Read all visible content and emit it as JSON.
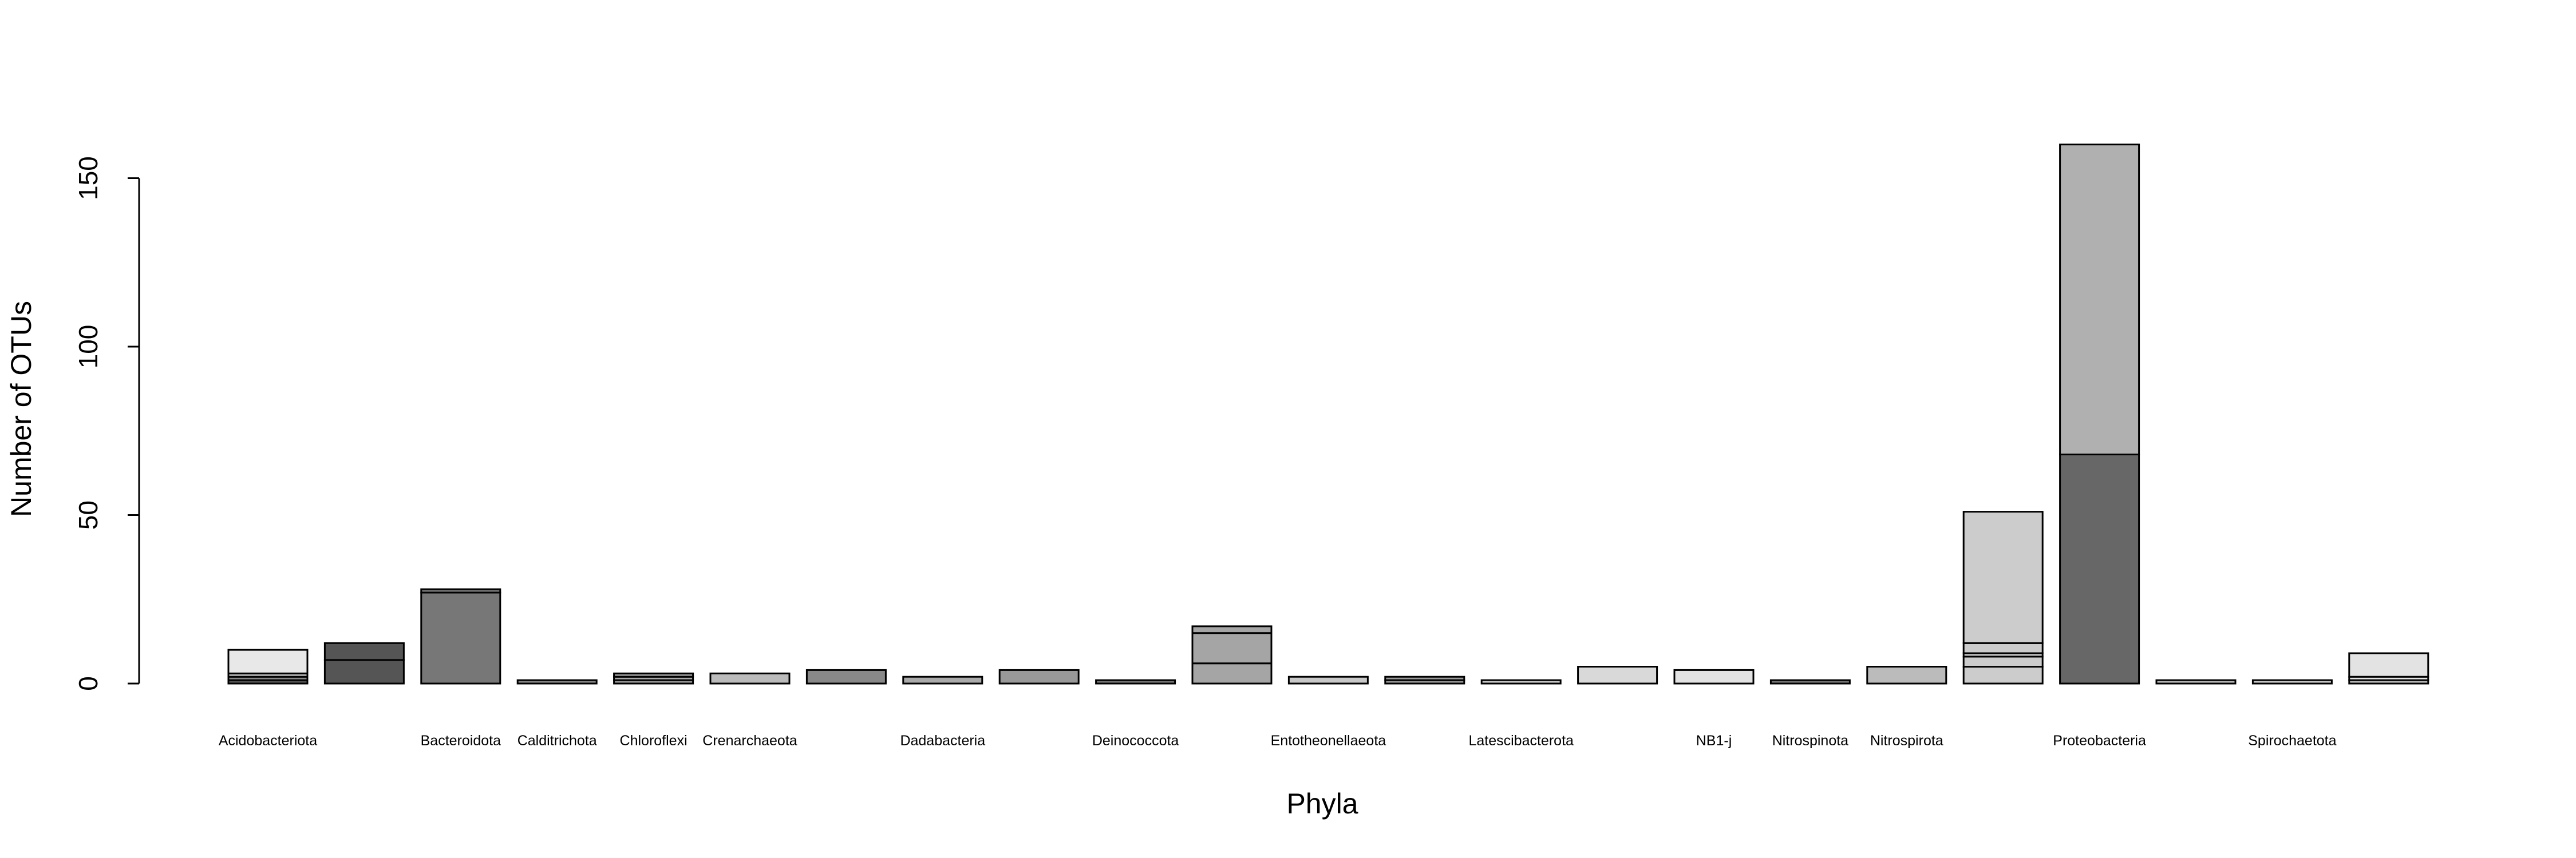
{
  "chart_data": {
    "type": "bar",
    "stacked": true,
    "xlabel": "Phyla",
    "ylabel": "Number of OTUs",
    "ylim": [
      0,
      160
    ],
    "yticks": [
      0,
      50,
      100,
      150
    ],
    "categories": [
      "Acidobacteriota",
      "",
      "Bacteroidota",
      "Calditrichota",
      "Chloroflexi",
      "Crenarchaeota",
      "",
      "Dadabacteria",
      "",
      "Deinococcota",
      "",
      "Entotheonellaeota",
      "",
      "Latescibacterota",
      "",
      "NB1-j",
      "Nitrospinota",
      "Nitrospirota",
      "",
      "Proteobacteria",
      "",
      "Spirochaetota",
      ""
    ],
    "stacks": [
      {
        "segments": [
          {
            "value": 1,
            "color": "#555555"
          },
          {
            "value": 1,
            "color": "#888888"
          },
          {
            "value": 1,
            "color": "#bbbbbb"
          },
          {
            "value": 7,
            "color": "#e8e8e8"
          }
        ]
      },
      {
        "segments": [
          {
            "value": 7,
            "color": "#555555"
          },
          {
            "value": 5,
            "color": "#555555"
          }
        ]
      },
      {
        "segments": [
          {
            "value": 27,
            "color": "#777777"
          },
          {
            "value": 1,
            "color": "#777777"
          }
        ]
      },
      {
        "segments": [
          {
            "value": 1,
            "color": "#888888"
          }
        ]
      },
      {
        "segments": [
          {
            "value": 1,
            "color": "#999999"
          },
          {
            "value": 1,
            "color": "#aaaaaa"
          },
          {
            "value": 1,
            "color": "#999999"
          }
        ]
      },
      {
        "segments": [
          {
            "value": 3,
            "color": "#bbbbbb"
          }
        ]
      },
      {
        "segments": [
          {
            "value": 4,
            "color": "#888888"
          }
        ]
      },
      {
        "segments": [
          {
            "value": 2,
            "color": "#aaaaaa"
          }
        ]
      },
      {
        "segments": [
          {
            "value": 4,
            "color": "#999999"
          }
        ]
      },
      {
        "segments": [
          {
            "value": 1,
            "color": "#777777"
          }
        ]
      },
      {
        "segments": [
          {
            "value": 6,
            "color": "#a5a5a5"
          },
          {
            "value": 9,
            "color": "#a5a5a5"
          },
          {
            "value": 2,
            "color": "#a5a5a5"
          }
        ]
      },
      {
        "segments": [
          {
            "value": 2,
            "color": "#c8c8c8"
          }
        ]
      },
      {
        "segments": [
          {
            "value": 1,
            "color": "#999999"
          },
          {
            "value": 1,
            "color": "#999999"
          }
        ]
      },
      {
        "segments": [
          {
            "value": 1,
            "color": "#cccccc"
          }
        ]
      },
      {
        "segments": [
          {
            "value": 5,
            "color": "#d9d9d9"
          }
        ]
      },
      {
        "segments": [
          {
            "value": 4,
            "color": "#e3e3e3"
          }
        ]
      },
      {
        "segments": [
          {
            "value": 1,
            "color": "#777777"
          }
        ]
      },
      {
        "segments": [
          {
            "value": 5,
            "color": "#bbbbbb"
          }
        ]
      },
      {
        "segments": [
          {
            "value": 5,
            "color": "#cccccc"
          },
          {
            "value": 3,
            "color": "#cccccc"
          },
          {
            "value": 1,
            "color": "#cccccc"
          },
          {
            "value": 3,
            "color": "#cccccc"
          },
          {
            "value": 39,
            "color": "#cccccc"
          }
        ]
      },
      {
        "segments": [
          {
            "value": 68,
            "color": "#676767"
          },
          {
            "value": 92,
            "color": "#b0b0b0"
          }
        ]
      },
      {
        "segments": [
          {
            "value": 1,
            "color": "#bbbbbb"
          }
        ]
      },
      {
        "segments": [
          {
            "value": 1,
            "color": "#cccccc"
          }
        ]
      },
      {
        "segments": [
          {
            "value": 1,
            "color": "#bbbbbb"
          },
          {
            "value": 1,
            "color": "#e3e3e3"
          },
          {
            "value": 7,
            "color": "#e3e3e3"
          }
        ]
      }
    ]
  }
}
